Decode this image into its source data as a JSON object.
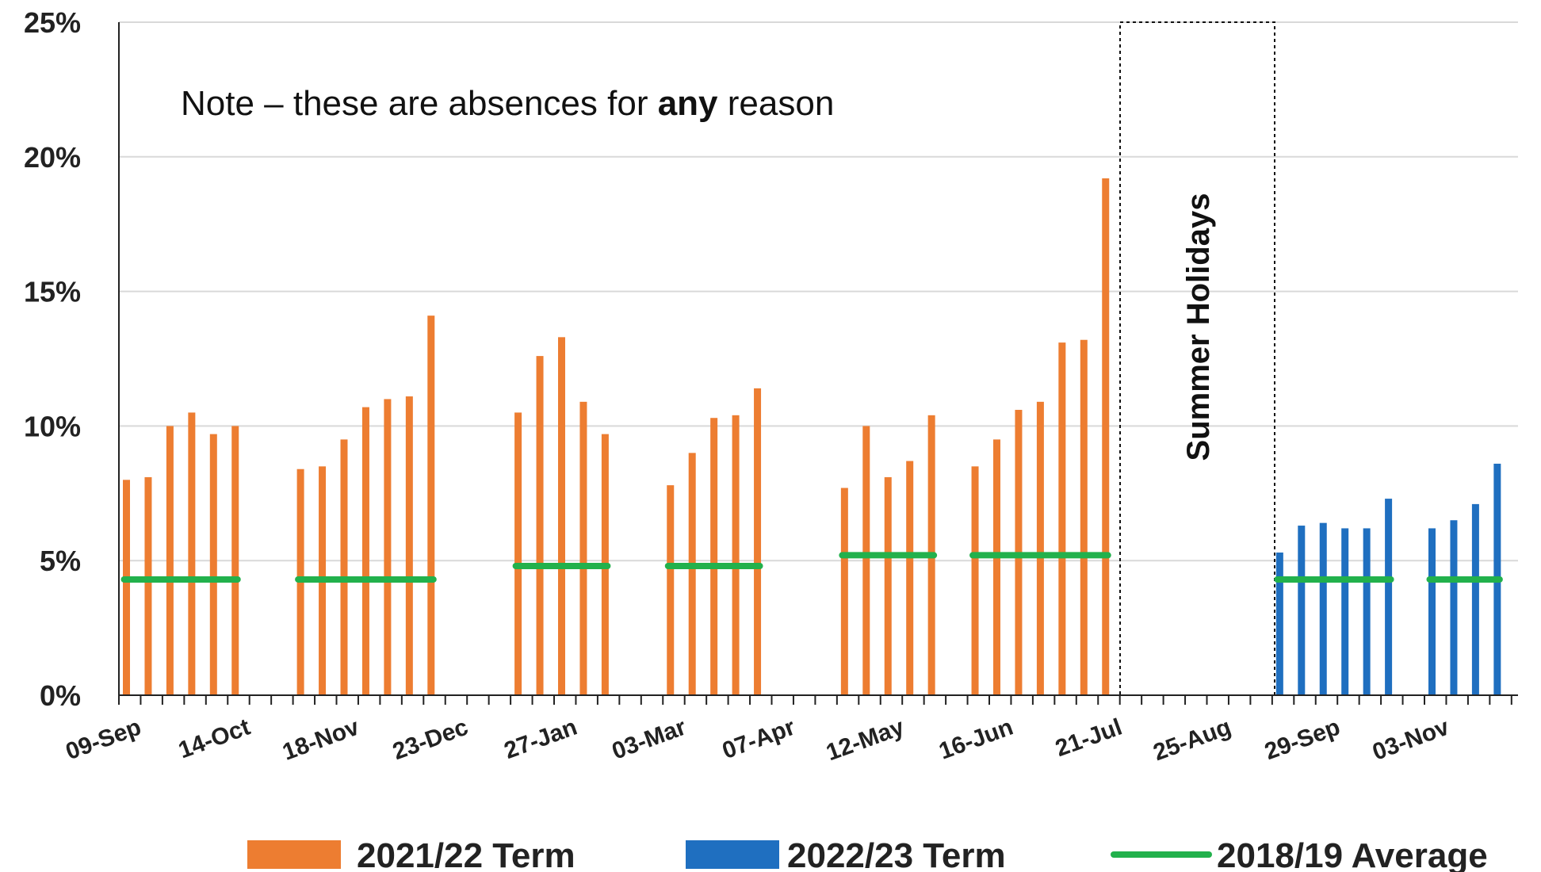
{
  "chart_data": {
    "type": "bar",
    "y_tick_labels": [
      "0%",
      "5%",
      "10%",
      "15%",
      "20%",
      "25%"
    ],
    "ylim": [
      0,
      25
    ],
    "grid": true,
    "x_tick_labels": [
      "09-Sep",
      "14-Oct",
      "18-Nov",
      "23-Dec",
      "27-Jan",
      "03-Mar",
      "07-Apr",
      "12-May",
      "16-Jun",
      "21-Jul",
      "25-Aug",
      "29-Sep",
      "03-Nov"
    ],
    "note": {
      "prefix": "Note – these are absences for ",
      "emphasis": "any",
      "suffix": " reason"
    },
    "shaded_region_label": "Summer Holidays",
    "legend_position": "bottom",
    "series": [
      {
        "name": "2021/22 Term",
        "color": "#ED7D31",
        "kind": "bar",
        "points": [
          {
            "week": 0,
            "value": 8.0
          },
          {
            "week": 1,
            "value": 8.1
          },
          {
            "week": 2,
            "value": 10.0
          },
          {
            "week": 3,
            "value": 10.5
          },
          {
            "week": 4,
            "value": 9.7
          },
          {
            "week": 5,
            "value": 10.0
          },
          {
            "week": 8,
            "value": 8.4
          },
          {
            "week": 9,
            "value": 8.5
          },
          {
            "week": 10,
            "value": 9.5
          },
          {
            "week": 11,
            "value": 10.7
          },
          {
            "week": 12,
            "value": 11.0
          },
          {
            "week": 13,
            "value": 11.1
          },
          {
            "week": 14,
            "value": 14.1
          },
          {
            "week": 18,
            "value": 10.5
          },
          {
            "week": 19,
            "value": 12.6
          },
          {
            "week": 20,
            "value": 13.3
          },
          {
            "week": 21,
            "value": 10.9
          },
          {
            "week": 22,
            "value": 9.7
          },
          {
            "week": 25,
            "value": 7.8
          },
          {
            "week": 26,
            "value": 9.0
          },
          {
            "week": 27,
            "value": 10.3
          },
          {
            "week": 28,
            "value": 10.4
          },
          {
            "week": 29,
            "value": 11.4
          },
          {
            "week": 33,
            "value": 7.7
          },
          {
            "week": 34,
            "value": 10.0
          },
          {
            "week": 35,
            "value": 8.1
          },
          {
            "week": 36,
            "value": 8.7
          },
          {
            "week": 37,
            "value": 10.4
          },
          {
            "week": 39,
            "value": 8.5
          },
          {
            "week": 40,
            "value": 9.5
          },
          {
            "week": 41,
            "value": 10.6
          },
          {
            "week": 42,
            "value": 10.9
          },
          {
            "week": 43,
            "value": 13.1
          },
          {
            "week": 44,
            "value": 13.2
          },
          {
            "week": 45,
            "value": 19.2
          }
        ]
      },
      {
        "name": "2022/23 Term",
        "color": "#1F6FC0",
        "kind": "bar",
        "points": [
          {
            "week": 53,
            "value": 5.3
          },
          {
            "week": 54,
            "value": 6.3
          },
          {
            "week": 55,
            "value": 6.4
          },
          {
            "week": 56,
            "value": 6.2
          },
          {
            "week": 57,
            "value": 6.2
          },
          {
            "week": 58,
            "value": 7.3
          },
          {
            "week": 60,
            "value": 6.2
          },
          {
            "week": 61,
            "value": 6.5
          },
          {
            "week": 62,
            "value": 7.1
          },
          {
            "week": 63,
            "value": 8.6
          }
        ]
      },
      {
        "name": "2018/19 Average",
        "color": "#22B14C",
        "kind": "segments",
        "segments": [
          {
            "from_week": 0,
            "to_week": 5,
            "value": 4.3
          },
          {
            "from_week": 8,
            "to_week": 14,
            "value": 4.3
          },
          {
            "from_week": 18,
            "to_week": 22,
            "value": 4.8
          },
          {
            "from_week": 25,
            "to_week": 29,
            "value": 4.8
          },
          {
            "from_week": 33,
            "to_week": 37,
            "value": 5.2
          },
          {
            "from_week": 39,
            "to_week": 45,
            "value": 5.2
          },
          {
            "from_week": 53,
            "to_week": 58,
            "value": 4.3
          },
          {
            "from_week": 60,
            "to_week": 63,
            "value": 4.3
          }
        ]
      }
    ]
  }
}
